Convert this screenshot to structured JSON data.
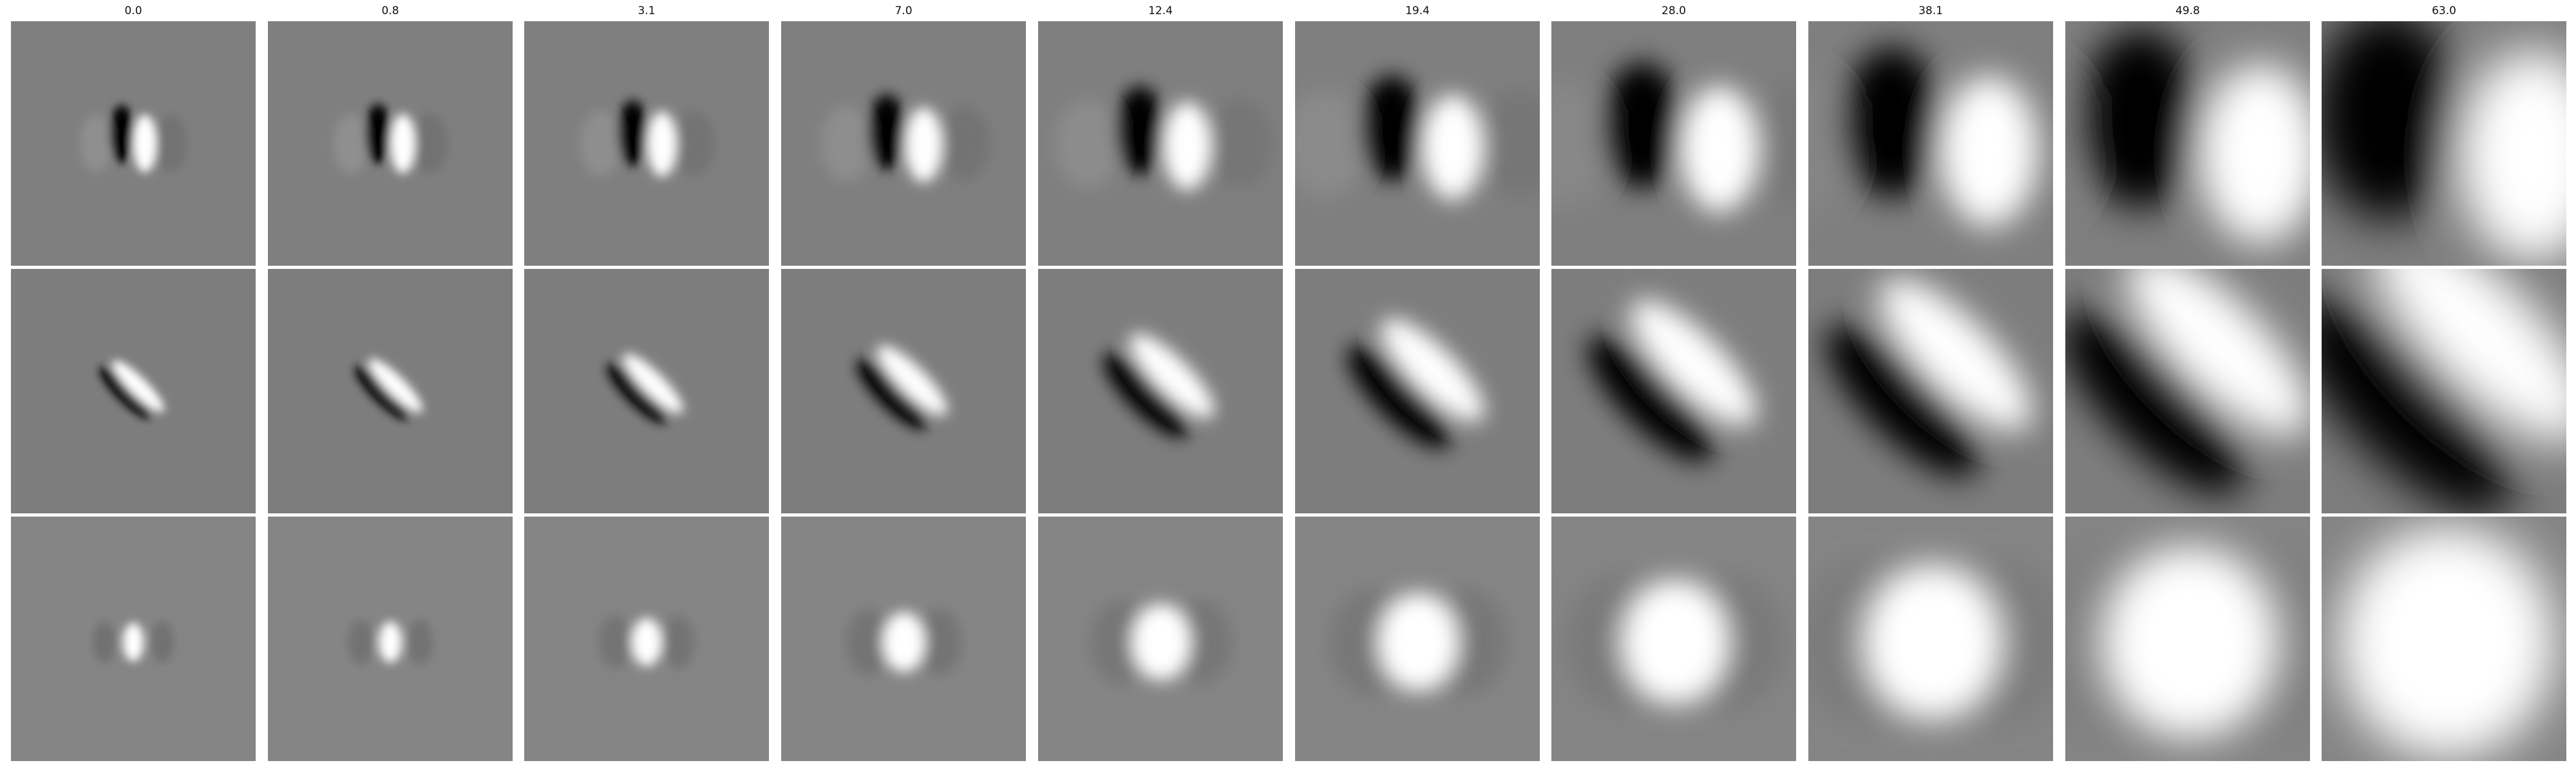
{
  "columns": [
    {
      "label": "0.0",
      "spread": 0.0
    },
    {
      "label": "0.8",
      "spread": 0.8
    },
    {
      "label": "3.1",
      "spread": 3.1
    },
    {
      "label": "7.0",
      "spread": 7.0
    },
    {
      "label": "12.4",
      "spread": 12.4
    },
    {
      "label": "19.4",
      "spread": 19.4
    },
    {
      "label": "28.0",
      "spread": 28.0
    },
    {
      "label": "38.1",
      "spread": 38.1
    },
    {
      "label": "49.8",
      "spread": 49.8
    },
    {
      "label": "63.0",
      "spread": 63.0
    }
  ],
  "rows": [
    {
      "kind": "vertical-edge",
      "polarity": "dark-left-light-right"
    },
    {
      "kind": "diagonal-edge",
      "polarity": "dark-lower-left-light-upper-right"
    },
    {
      "kind": "center-blob",
      "polarity": "light-center"
    }
  ],
  "colors": {
    "background": "#ffffff",
    "mid_gray": "#808080"
  }
}
